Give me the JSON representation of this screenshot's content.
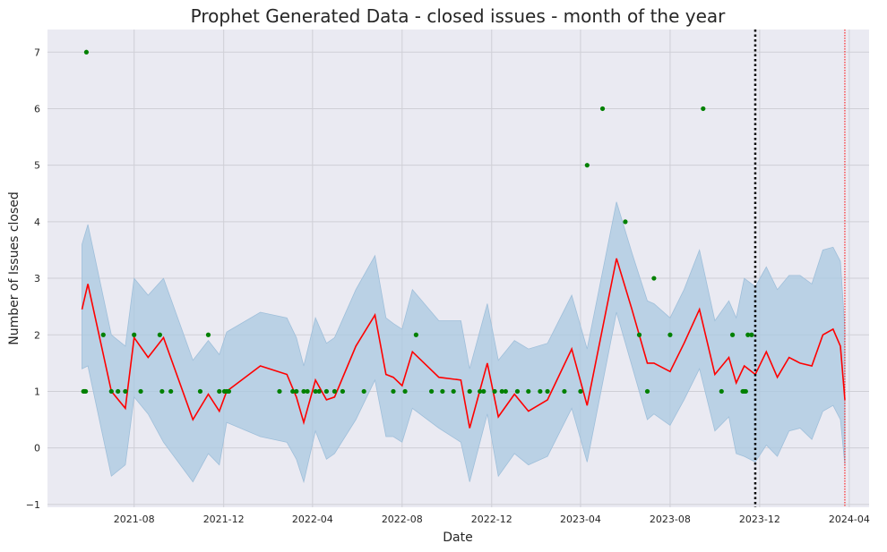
{
  "chart_data": {
    "type": "line",
    "title": "Prophet Generated Data - closed issues - month of the year",
    "xlabel": "Date",
    "ylabel": "Number of Issues closed",
    "ylim": [
      -1.05,
      7.4
    ],
    "yticks": [
      -1,
      0,
      1,
      2,
      3,
      4,
      5,
      6,
      7
    ],
    "xlim": [
      "2021-04-05",
      "2024-04-28"
    ],
    "xticks": [
      "2021-08",
      "2021-12",
      "2022-04",
      "2022-08",
      "2022-12",
      "2023-04",
      "2023-08",
      "2023-12",
      "2024-04"
    ],
    "grid": true,
    "colors": {
      "observed": "#008000",
      "forecast": "#ff0000",
      "interval": "#a9c8e0",
      "cutoff": "#000000",
      "end_marker": "#ff0000",
      "background": "#eaeaf2",
      "grid": "#cfcfd6"
    },
    "observed_dates": [
      "2021-05-24",
      "2021-05-25",
      "2021-05-26",
      "2021-05-27",
      "2021-05-28",
      "2021-06-20",
      "2021-07-01",
      "2021-07-10",
      "2021-07-20",
      "2021-08-01",
      "2021-08-10",
      "2021-09-05",
      "2021-09-08",
      "2021-09-20",
      "2021-10-30",
      "2021-11-10",
      "2021-11-25",
      "2021-12-02",
      "2021-12-05",
      "2021-12-08",
      "2022-02-15",
      "2022-03-05",
      "2022-03-10",
      "2022-03-20",
      "2022-03-25",
      "2022-04-05",
      "2022-04-10",
      "2022-04-20",
      "2022-05-01",
      "2022-05-12",
      "2022-06-10",
      "2022-07-20",
      "2022-08-05",
      "2022-08-20",
      "2022-09-10",
      "2022-09-25",
      "2022-10-10",
      "2022-11-01",
      "2022-11-15",
      "2022-11-20",
      "2022-12-05",
      "2022-12-15",
      "2022-12-20",
      "2023-01-05",
      "2023-01-20",
      "2023-02-05",
      "2023-02-15",
      "2023-03-10",
      "2023-04-01",
      "2023-04-10",
      "2023-05-01",
      "2023-06-01",
      "2023-06-20",
      "2023-07-01",
      "2023-07-10",
      "2023-08-01",
      "2023-09-15",
      "2023-10-10",
      "2023-10-25",
      "2023-11-08",
      "2023-11-10",
      "2023-11-12",
      "2023-11-15",
      "2023-11-20"
    ],
    "observed_values": [
      1,
      1,
      1,
      1,
      7,
      2,
      1,
      1,
      1,
      2,
      1,
      2,
      1,
      1,
      1,
      2,
      1,
      1,
      1,
      1,
      1,
      1,
      1,
      1,
      1,
      1,
      1,
      1,
      1,
      1,
      1,
      1,
      1,
      2,
      1,
      1,
      1,
      1,
      1,
      1,
      1,
      1,
      1,
      1,
      1,
      1,
      1,
      1,
      1,
      5,
      6,
      4,
      2,
      1,
      3,
      2,
      6,
      1,
      2,
      1,
      1,
      1,
      2,
      2
    ],
    "forecast_dates": [
      "2021-05-22",
      "2021-05-30",
      "2021-07-01",
      "2021-07-20",
      "2021-08-01",
      "2021-08-20",
      "2021-09-10",
      "2021-10-20",
      "2021-11-10",
      "2021-11-25",
      "2021-12-05",
      "2022-01-20",
      "2022-02-25",
      "2022-03-10",
      "2022-03-20",
      "2022-04-05",
      "2022-04-20",
      "2022-05-01",
      "2022-05-30",
      "2022-06-25",
      "2022-07-10",
      "2022-07-20",
      "2022-08-01",
      "2022-08-15",
      "2022-09-20",
      "2022-10-20",
      "2022-11-01",
      "2022-11-25",
      "2022-12-10",
      "2023-01-01",
      "2023-01-20",
      "2023-02-15",
      "2023-03-20",
      "2023-04-10",
      "2023-05-20",
      "2023-06-10",
      "2023-07-01",
      "2023-07-10",
      "2023-08-01",
      "2023-08-20",
      "2023-09-10",
      "2023-10-01",
      "2023-10-20",
      "2023-10-30",
      "2023-11-10",
      "2023-11-25",
      "2023-12-10",
      "2023-12-25",
      "2024-01-10",
      "2024-01-25",
      "2024-02-10",
      "2024-02-25",
      "2024-03-10",
      "2024-03-20",
      "2024-03-26"
    ],
    "forecast_values": [
      2.45,
      2.9,
      1.0,
      0.7,
      1.95,
      1.6,
      1.95,
      0.5,
      0.95,
      0.65,
      1.0,
      1.45,
      1.3,
      0.9,
      0.45,
      1.2,
      0.85,
      0.9,
      1.8,
      2.35,
      1.3,
      1.25,
      1.1,
      1.7,
      1.25,
      1.2,
      0.35,
      1.5,
      0.55,
      0.95,
      0.65,
      0.85,
      1.75,
      0.75,
      3.35,
      2.45,
      1.5,
      1.5,
      1.35,
      1.85,
      2.45,
      1.3,
      1.6,
      1.15,
      1.45,
      1.3,
      1.7,
      1.25,
      1.6,
      1.5,
      1.45,
      2.0,
      2.1,
      1.8,
      0.85
    ],
    "interval_lower": [
      1.4,
      1.45,
      -0.5,
      -0.3,
      0.9,
      0.6,
      0.1,
      -0.6,
      -0.1,
      -0.3,
      0.45,
      0.2,
      0.1,
      -0.2,
      -0.6,
      0.3,
      -0.2,
      -0.1,
      0.5,
      1.2,
      0.2,
      0.2,
      0.1,
      0.7,
      0.35,
      0.1,
      -0.6,
      0.6,
      -0.5,
      -0.1,
      -0.3,
      -0.15,
      0.7,
      -0.25,
      2.4,
      1.45,
      0.5,
      0.6,
      0.4,
      0.85,
      1.4,
      0.3,
      0.55,
      -0.1,
      -0.15,
      -0.25,
      0.05,
      -0.15,
      0.3,
      0.35,
      0.15,
      0.65,
      0.75,
      0.5,
      -0.3
    ],
    "interval_upper": [
      3.6,
      3.95,
      2.0,
      1.8,
      3.0,
      2.7,
      3.0,
      1.55,
      1.9,
      1.65,
      2.05,
      2.4,
      2.3,
      1.95,
      1.45,
      2.3,
      1.85,
      1.95,
      2.8,
      3.4,
      2.3,
      2.2,
      2.1,
      2.8,
      2.25,
      2.25,
      1.4,
      2.55,
      1.55,
      1.9,
      1.75,
      1.85,
      2.7,
      1.75,
      4.35,
      3.45,
      2.6,
      2.55,
      2.3,
      2.8,
      3.5,
      2.25,
      2.6,
      2.3,
      3.0,
      2.85,
      3.2,
      2.8,
      3.05,
      3.05,
      2.9,
      3.5,
      3.55,
      3.3,
      2.1
    ],
    "cutoff_date": "2023-11-25",
    "end_date": "2024-03-26"
  }
}
